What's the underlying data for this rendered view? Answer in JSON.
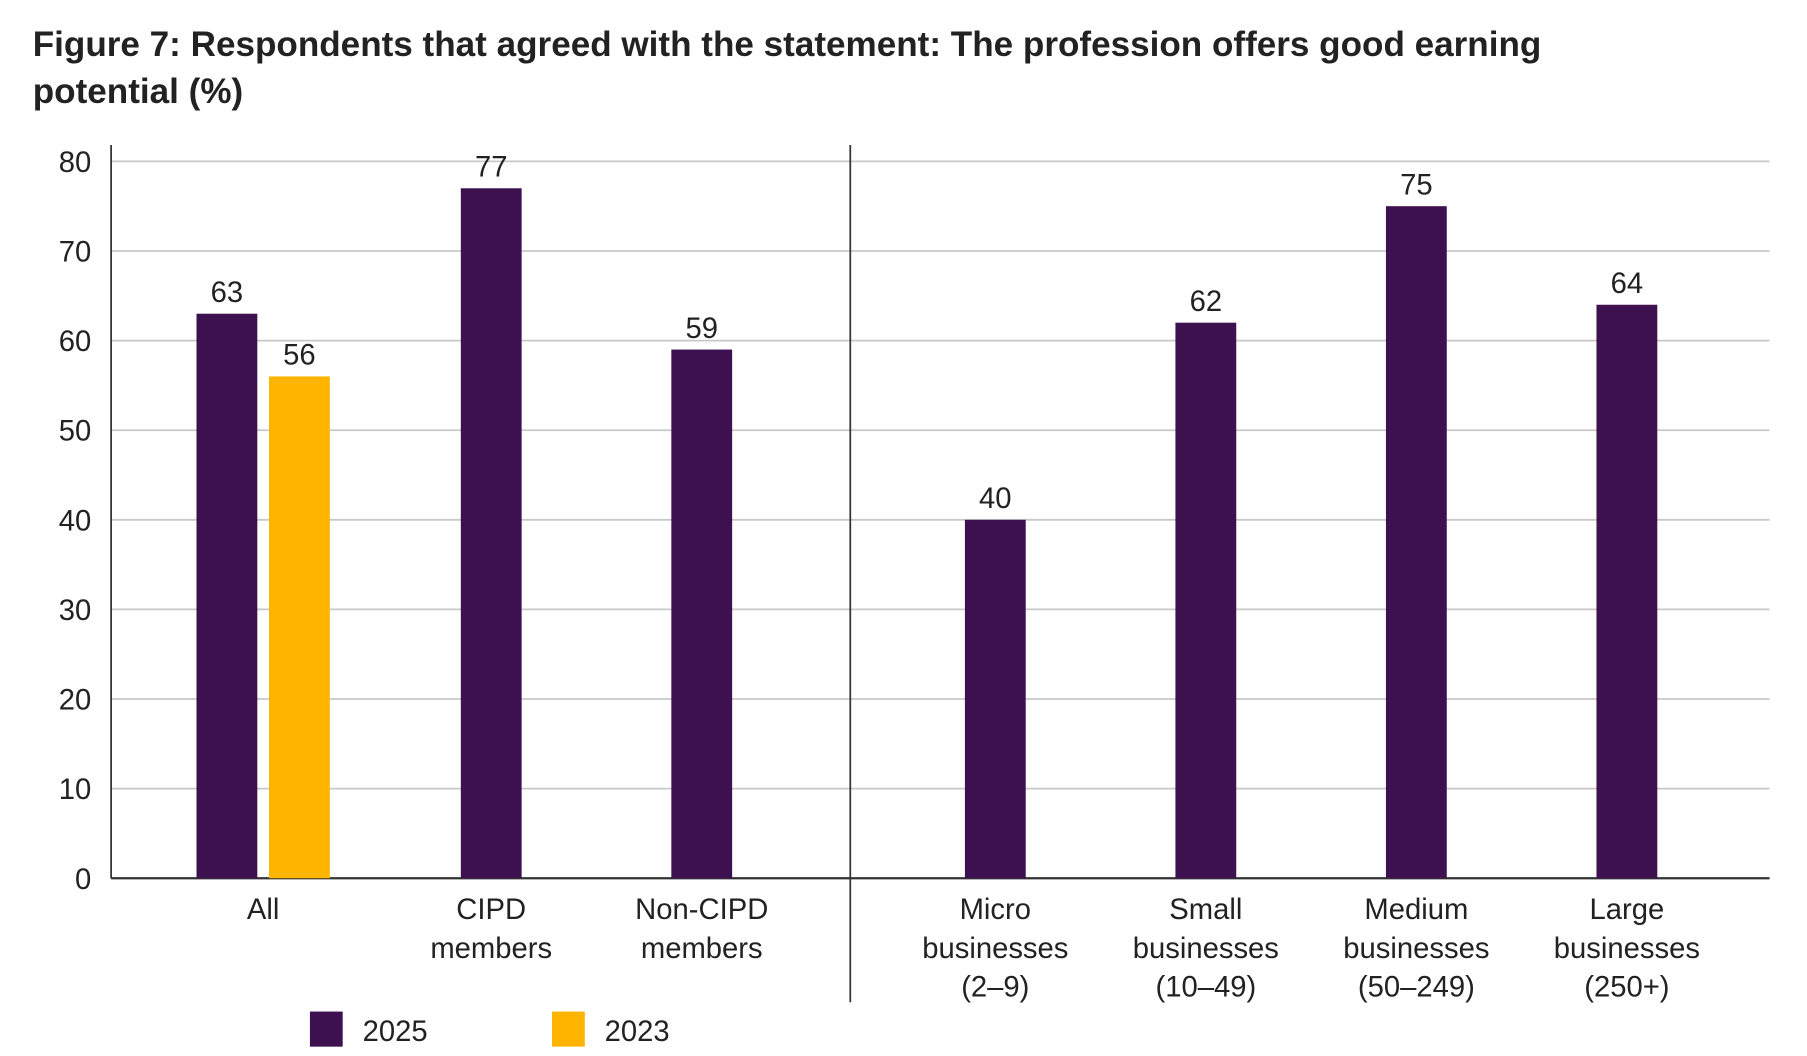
{
  "chart_data": {
    "type": "bar",
    "title": "Figure 7: Respondents that agreed with the statement: The profession offers good earning potential (%)",
    "title_lines": [
      "Figure 7: Respondents that agreed with the statement: The profession offers good earning",
      "potential (%)"
    ],
    "categories": [
      [
        "All"
      ],
      [
        "CIPD",
        "members"
      ],
      [
        "Non-CIPD",
        "members"
      ],
      [
        "Micro",
        "businesses",
        "(2–9)"
      ],
      [
        "Small",
        "businesses",
        "(10–49)"
      ],
      [
        "Medium",
        "businesses",
        "(50–249)"
      ],
      [
        "Large",
        "businesses",
        "(250+)"
      ]
    ],
    "series": [
      {
        "name": "2025",
        "color": "#3d1150",
        "values": [
          63,
          77,
          59,
          40,
          62,
          75,
          64
        ]
      },
      {
        "name": "2023",
        "color": "#ffb500",
        "values": [
          56,
          null,
          null,
          null,
          null,
          null,
          null
        ]
      }
    ],
    "ylim": [
      0,
      80
    ],
    "yticks": [
      0,
      10,
      20,
      30,
      40,
      50,
      60,
      70,
      80
    ],
    "grid": true,
    "legend": "bottom-left",
    "group_divider_after_category": 3
  }
}
